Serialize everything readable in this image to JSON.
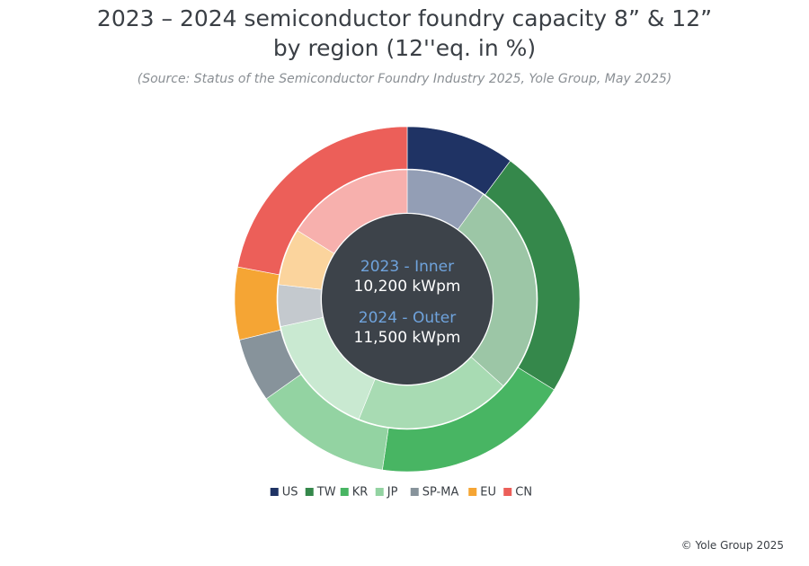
{
  "chart_data": {
    "type": "nested-donut",
    "title": "2023 – 2024 semiconductor foundry capacity 8” & 12” by region (12''eq. in %)",
    "subtitle": "(Source: Status of the Semiconductor Foundry Industry 2025, Yole Group, May 2025)",
    "categories": [
      "US",
      "TW",
      "KR",
      "JP",
      "SP-MA",
      "EU",
      "CN"
    ],
    "colors": [
      "#1f3364",
      "#35884b",
      "#48b563",
      "#93d3a2",
      "#87939b",
      "#f5a534",
      "#ec5f59"
    ],
    "series": [
      {
        "name": "2023 - Inner",
        "total_label": "10,200 kWpm",
        "ring": "inner",
        "colors": [
          "#939eb5",
          "#9cc6a6",
          "#a8dbb3",
          "#c9e9d1",
          "#c4c9ce",
          "#fbd49d",
          "#f7b0ad"
        ],
        "values": [
          10,
          26.7,
          19.4,
          15.5,
          5.2,
          7.1,
          16.1
        ]
      },
      {
        "name": "2024 - Outer",
        "total_label": "11,500 kWpm",
        "ring": "outer",
        "colors": [
          "#1f3364",
          "#35884b",
          "#48b563",
          "#93d3a2",
          "#87939b",
          "#f5a534",
          "#ec5f59"
        ],
        "values": [
          10.2,
          23.6,
          18.5,
          12.9,
          6,
          6.8,
          22
        ]
      }
    ],
    "footer": "© Yole Group 2025"
  }
}
